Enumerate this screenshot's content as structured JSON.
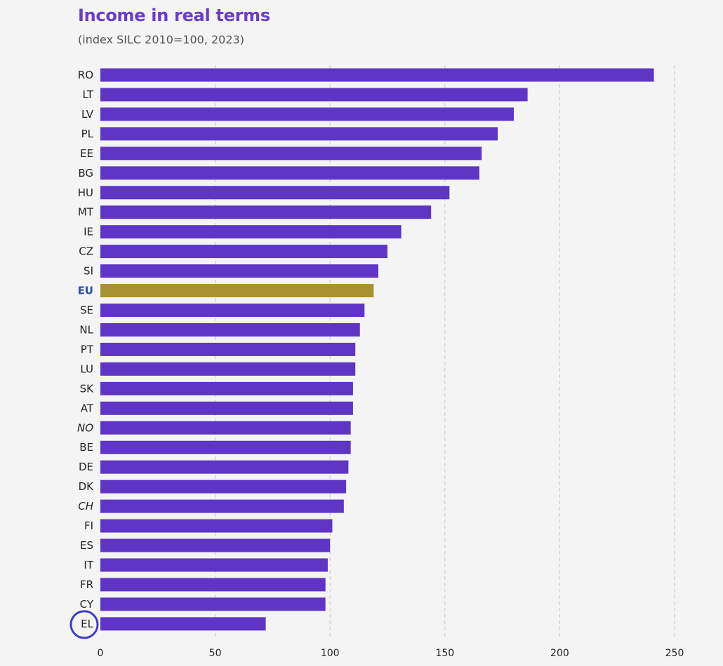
{
  "chart_data": {
    "type": "bar",
    "orientation": "horizontal",
    "title": "Income in real terms",
    "subtitle": "(index SILC 2010=100, 2023)",
    "categories": [
      "RO",
      "LT",
      "LV",
      "PL",
      "EE",
      "BG",
      "HU",
      "MT",
      "IE",
      "CZ",
      "SI",
      "EU",
      "SE",
      "NL",
      "PT",
      "LU",
      "SK",
      "AT",
      "NO",
      "BE",
      "DE",
      "DK",
      "CH",
      "FI",
      "ES",
      "IT",
      "FR",
      "CY",
      "EL"
    ],
    "values": [
      241,
      186,
      180,
      173,
      166,
      165,
      152,
      144,
      131,
      125,
      121,
      119,
      115,
      113,
      111,
      111,
      110,
      110,
      109,
      109,
      108,
      107,
      106,
      101,
      100,
      99,
      98,
      98,
      72
    ],
    "highlight_category": "EU",
    "italic_categories": [
      "NO",
      "CH"
    ],
    "circled_category": "EL",
    "xlim": [
      0,
      250
    ],
    "xticks": [
      0,
      50,
      100,
      150,
      200,
      250
    ],
    "grid": "vertical dashed",
    "colors": {
      "bar": "#5e35c4",
      "highlight_bar": "#a89130",
      "highlight_label": "#2a4fa8",
      "circle": "#3b3fc4",
      "title": "#6a3dc8"
    }
  }
}
